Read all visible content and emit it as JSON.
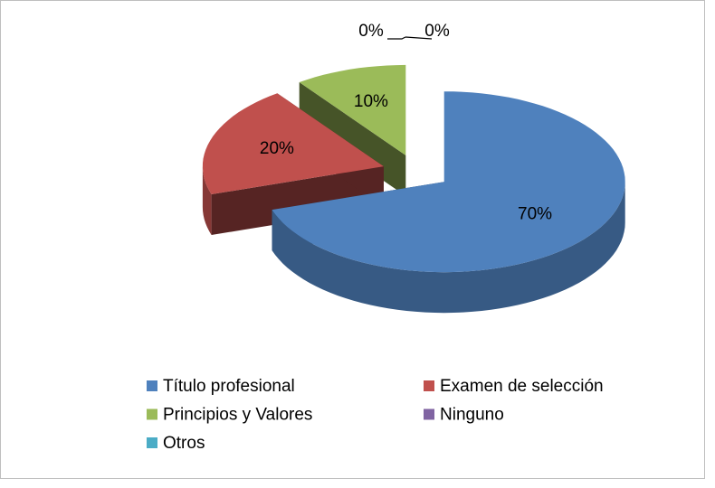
{
  "chart_data": {
    "type": "pie3d",
    "categories": [
      "Título profesional",
      "Examen de selección",
      "Principios y Valores",
      "Ninguno",
      "Otros"
    ],
    "values": [
      70,
      20,
      10,
      0,
      0
    ],
    "value_labels": [
      "70%",
      "20%",
      "10%",
      "0%",
      "0%"
    ],
    "colors": [
      "#4f81bd",
      "#c0504d",
      "#9bbb59",
      "#8064a2",
      "#4bacc6"
    ],
    "legend": "bottom"
  }
}
